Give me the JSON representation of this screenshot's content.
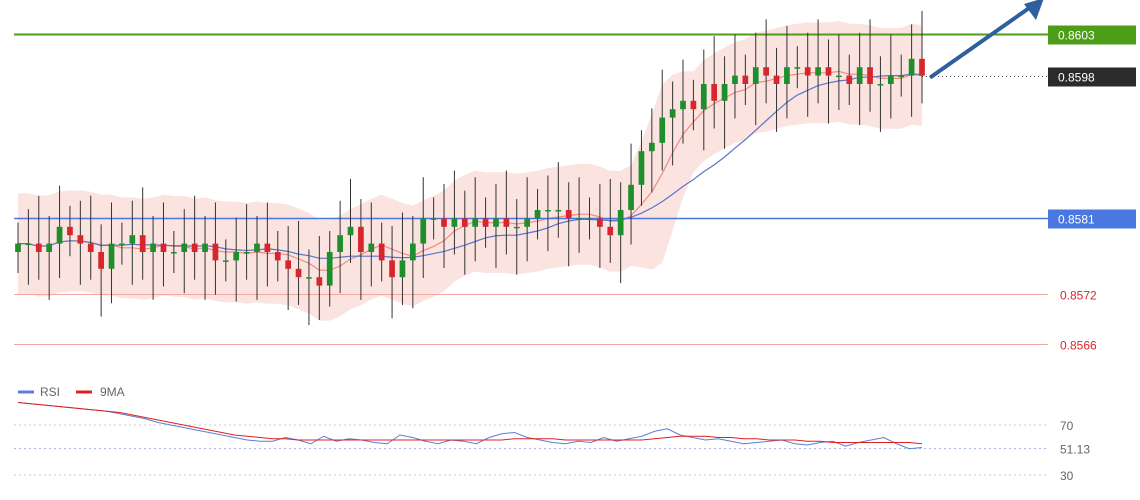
{
  "colors": {
    "background": "#ffffff",
    "candle_up": "#1f8f2e",
    "candle_down": "#d8262f",
    "wick": "#333333",
    "band_fill": "#f9d9d6",
    "ma_fast": "#f08a84",
    "ma_slow": "#5b75c8",
    "resistance_line": "#4c9e18",
    "support_blue": "#4a78e0",
    "support_red": "#f4a7a3",
    "current_price_bg": "#2b2b2b",
    "arrow": "#2f5f9e",
    "rsi_line": "#5b7fd6",
    "rsi_ma": "#e02020"
  },
  "legend": {
    "rsi_label": "RSI",
    "ma_label": "9MA"
  },
  "levels": [
    {
      "id": "r1",
      "value": 0.8603,
      "label": "0.8603",
      "style": "badge-green"
    },
    {
      "id": "cur",
      "value": 0.8598,
      "label": "0.8598",
      "style": "badge-dark"
    },
    {
      "id": "s1",
      "value": 0.8581,
      "label": "0.8581",
      "style": "badge-blue"
    },
    {
      "id": "s2",
      "value": 0.8572,
      "label": "0.8572",
      "style": "text-red"
    },
    {
      "id": "s3",
      "value": 0.8566,
      "label": "0.8566",
      "style": "text-red"
    }
  ],
  "chart_data": {
    "type": "candlestick",
    "title": "",
    "price_range": [
      0.8562,
      0.8607
    ],
    "series": [
      {
        "name": "price",
        "values": [
          0.8578,
          0.8578,
          0.8577,
          0.8578,
          0.858,
          0.8579,
          0.8578,
          0.8577,
          0.8575,
          0.8578,
          0.8578,
          0.8579,
          0.8577,
          0.8578,
          0.8577,
          0.8577,
          0.8578,
          0.8577,
          0.8578,
          0.8576,
          0.8576,
          0.8577,
          0.8577,
          0.8578,
          0.8577,
          0.8576,
          0.8575,
          0.8574,
          0.8574,
          0.8573,
          0.8577,
          0.8579,
          0.858,
          0.8577,
          0.8578,
          0.8576,
          0.8574,
          0.8576,
          0.8578,
          0.8581,
          0.8581,
          0.858,
          0.8581,
          0.858,
          0.8581,
          0.858,
          0.8581,
          0.858,
          0.858,
          0.8581,
          0.8582,
          0.8582,
          0.8582,
          0.8581,
          0.8581,
          0.8581,
          0.858,
          0.8579,
          0.8582,
          0.8585,
          0.8589,
          0.859,
          0.8593,
          0.8594,
          0.8595,
          0.8594,
          0.8597,
          0.8595,
          0.8597,
          0.8598,
          0.8597,
          0.8599,
          0.8598,
          0.8597,
          0.8599,
          0.8599,
          0.8598,
          0.8599,
          0.8598,
          0.8598,
          0.8597,
          0.8599,
          0.8597,
          0.8597,
          0.8598,
          0.8598,
          0.86,
          0.8598
        ]
      },
      {
        "name": "RSI",
        "range": [
          10,
          90
        ],
        "values": [
          88,
          87,
          86,
          85,
          84,
          83,
          82,
          81,
          79,
          77,
          75,
          72,
          70,
          68,
          66,
          64,
          62,
          60,
          58,
          57,
          57,
          60,
          58,
          55,
          61,
          57,
          59,
          58,
          56,
          55,
          62,
          60,
          57,
          55,
          58,
          57,
          55,
          60,
          63,
          64,
          60,
          58,
          56,
          55,
          57,
          56,
          60,
          57,
          59,
          61,
          65,
          67,
          62,
          60,
          58,
          59,
          57,
          55,
          56,
          57,
          58,
          55,
          54,
          56,
          57,
          53,
          56,
          58,
          60,
          55,
          51,
          52
        ]
      },
      {
        "name": "9MA",
        "values": [
          88,
          87,
          86,
          85,
          84,
          83,
          82,
          81,
          80,
          78,
          76,
          74,
          72,
          70,
          68,
          66,
          64,
          62,
          61,
          60,
          59,
          59,
          58,
          58,
          58,
          58,
          58,
          58,
          58,
          58,
          58,
          58,
          58,
          58,
          58,
          58,
          58,
          58,
          58,
          59,
          59,
          59,
          59,
          58,
          58,
          58,
          58,
          58,
          58,
          58,
          59,
          60,
          61,
          61,
          61,
          60,
          60,
          59,
          59,
          58,
          58,
          58,
          57,
          57,
          56,
          56,
          56,
          56,
          56,
          56,
          56,
          55
        ]
      }
    ],
    "rsi_ticks": [
      {
        "value": 70,
        "label": "70"
      },
      {
        "value": 51.13,
        "label": "51.13"
      },
      {
        "value": 30,
        "label": "30"
      }
    ]
  }
}
